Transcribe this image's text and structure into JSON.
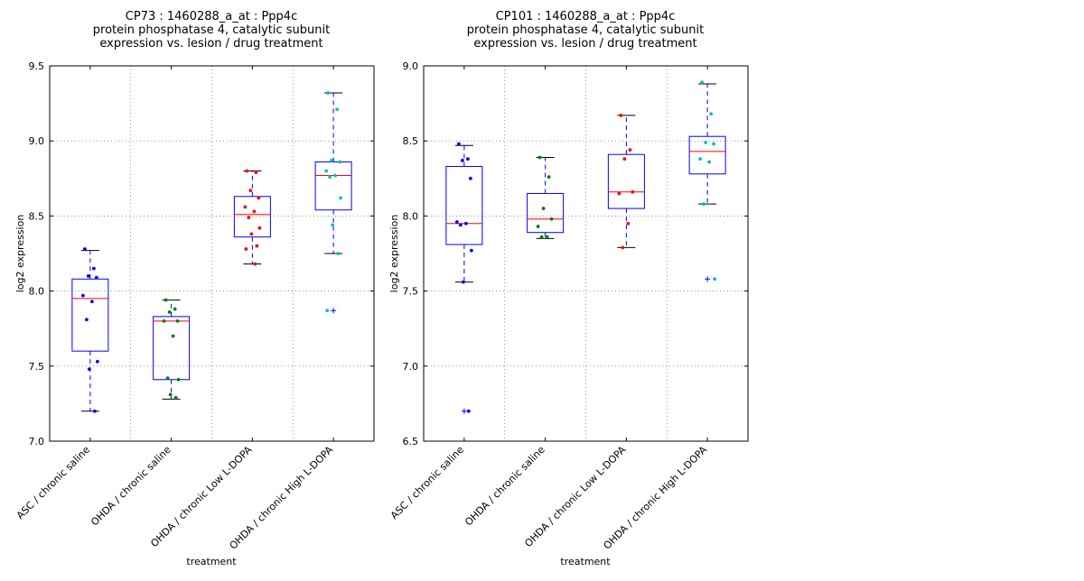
{
  "chart_data": [
    {
      "type": "box",
      "title_lines": [
        "CP73 : 1460288_a_at : Ppp4c",
        "protein phosphatase 4, catalytic subunit",
        "expression vs. lesion / drug treatment"
      ],
      "xlabel": "treatment",
      "ylabel": "log2 expression",
      "ylim": [
        7.0,
        9.5
      ],
      "yticks": [
        "7.0",
        "7.5",
        "8.0",
        "8.5",
        "9.0",
        "9.5"
      ],
      "ytick_values": [
        7.0,
        7.5,
        8.0,
        8.5,
        9.0,
        9.5
      ],
      "grid": true,
      "categories": [
        "ASC / chronic saline",
        "OHDA / chronic saline",
        "OHDA / chronic Low L-DOPA",
        "OHDA / chronic High L-DOPA"
      ],
      "colors": [
        "#0000ff",
        "#008000",
        "#ff0000",
        "#00bfbf"
      ],
      "boxes": [
        {
          "whislo": 7.2,
          "q1": 7.6,
          "med": 7.95,
          "q3": 8.08,
          "whishi": 8.27,
          "fliers": []
        },
        {
          "whislo": 7.28,
          "q1": 7.41,
          "med": 7.8,
          "q3": 7.83,
          "whishi": 7.94,
          "fliers": []
        },
        {
          "whislo": 8.18,
          "q1": 8.36,
          "med": 8.51,
          "q3": 8.63,
          "whishi": 8.8,
          "fliers": []
        },
        {
          "whislo": 8.25,
          "q1": 8.54,
          "med": 8.77,
          "q3": 8.86,
          "whishi": 9.32,
          "fliers": [
            7.87
          ]
        }
      ],
      "points": [
        [
          8.28,
          8.15,
          8.1,
          8.09,
          7.97,
          7.93,
          7.81,
          7.53,
          7.48,
          7.2
        ],
        [
          7.94,
          7.88,
          7.86,
          7.8,
          7.8,
          7.7,
          7.42,
          7.41,
          7.31,
          7.29
        ],
        [
          8.8,
          8.79,
          8.67,
          8.62,
          8.56,
          8.53,
          8.49,
          8.42,
          8.38,
          8.3,
          8.28,
          8.18
        ],
        [
          9.32,
          9.21,
          8.87,
          8.86,
          8.8,
          8.77,
          8.76,
          8.62,
          8.44,
          8.25,
          7.87
        ]
      ]
    },
    {
      "type": "box",
      "title_lines": [
        "CP101 : 1460288_a_at : Ppp4c",
        "protein phosphatase 4, catalytic subunit",
        "expression vs. lesion / drug treatment"
      ],
      "xlabel": "treatment",
      "ylabel": "log2 expression",
      "ylim": [
        6.5,
        9.0
      ],
      "yticks": [
        "6.5",
        "7.0",
        "7.5",
        "8.0",
        "8.5",
        "9.0"
      ],
      "ytick_values": [
        6.5,
        7.0,
        7.5,
        8.0,
        8.5,
        9.0
      ],
      "grid": true,
      "categories": [
        "ASC / chronic saline",
        "OHDA / chronic saline",
        "OHDA / chronic Low L-DOPA",
        "OHDA / chronic High L-DOPA"
      ],
      "colors": [
        "#0000ff",
        "#008000",
        "#ff0000",
        "#00bfbf"
      ],
      "boxes": [
        {
          "whislo": 7.56,
          "q1": 7.81,
          "med": 7.95,
          "q3": 8.33,
          "whishi": 8.47,
          "fliers": [
            6.7
          ]
        },
        {
          "whislo": 7.85,
          "q1": 7.89,
          "med": 7.98,
          "q3": 8.15,
          "whishi": 8.39,
          "fliers": []
        },
        {
          "whislo": 7.79,
          "q1": 8.05,
          "med": 8.16,
          "q3": 8.41,
          "whishi": 8.67,
          "fliers": []
        },
        {
          "whislo": 8.08,
          "q1": 8.28,
          "med": 8.43,
          "q3": 8.53,
          "whishi": 8.88,
          "fliers": [
            7.58
          ]
        }
      ],
      "points": [
        [
          8.48,
          8.38,
          8.37,
          8.25,
          7.96,
          7.95,
          7.94,
          7.77,
          7.56,
          6.7
        ],
        [
          8.39,
          8.26,
          8.05,
          7.98,
          7.93,
          7.86,
          7.86
        ],
        [
          8.67,
          8.44,
          8.38,
          8.16,
          8.15,
          7.95,
          7.79
        ],
        [
          8.89,
          8.68,
          8.49,
          8.48,
          8.38,
          8.36,
          8.08,
          7.58
        ]
      ]
    }
  ]
}
